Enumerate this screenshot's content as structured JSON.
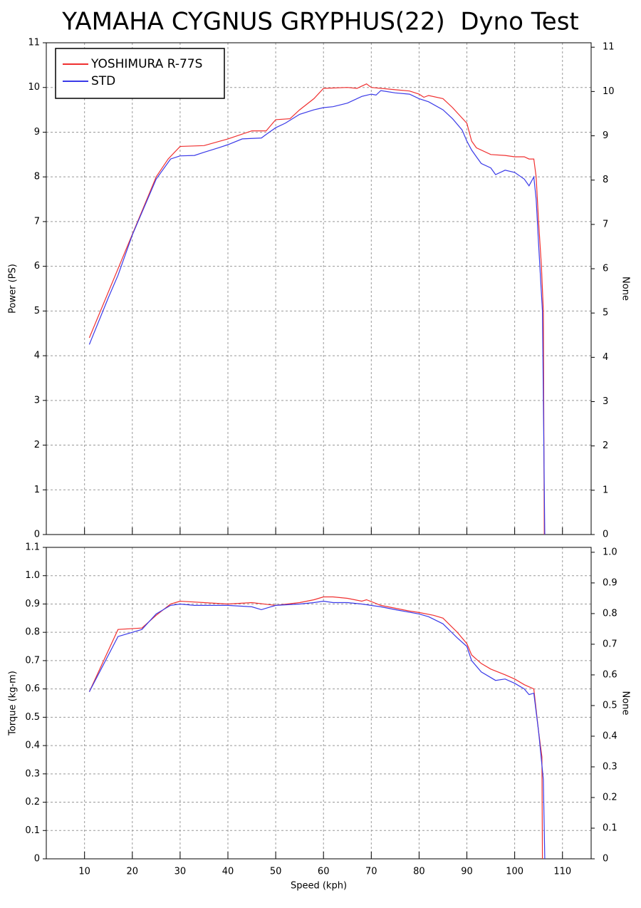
{
  "chart_data": [
    {
      "type": "line",
      "title": "YAMAHA CYGNUS GRYPHUS(22)  Dyno Test",
      "ylabel": "Power (PS)",
      "y2label": "None",
      "xlim": [
        2,
        116
      ],
      "xticks": [
        10,
        20,
        30,
        40,
        50,
        60,
        70,
        80,
        90,
        100,
        110
      ],
      "ylim": [
        0,
        11
      ],
      "yticks": [
        0,
        1,
        2,
        3,
        4,
        5,
        6,
        7,
        8,
        9,
        10,
        11
      ],
      "y2lim": [
        0,
        11.1
      ],
      "y2ticks": [
        0,
        1,
        2,
        3,
        4,
        5,
        6,
        7,
        8,
        9,
        10,
        11
      ],
      "grid": true,
      "legend": "upper left",
      "series": [
        {
          "name": "YOSHIMURA R-77S",
          "color": "#f03030",
          "x": [
            11,
            25,
            27.5,
            30,
            35,
            40,
            45,
            48,
            50,
            53,
            55,
            58,
            60,
            65,
            67,
            69,
            70,
            75,
            78,
            80,
            81,
            82,
            85,
            87,
            90,
            91,
            92,
            95,
            98,
            100,
            102,
            103,
            104,
            104.5,
            105,
            105.6,
            106,
            106.2
          ],
          "values": [
            4.4,
            8.0,
            8.4,
            8.68,
            8.7,
            8.85,
            9.03,
            9.03,
            9.28,
            9.3,
            9.5,
            9.75,
            9.98,
            10.0,
            9.98,
            10.08,
            10.0,
            9.95,
            9.92,
            9.85,
            9.78,
            9.82,
            9.75,
            9.55,
            9.2,
            8.8,
            8.65,
            8.5,
            8.48,
            8.45,
            8.45,
            8.4,
            8.4,
            8.0,
            7.0,
            6.0,
            5.0,
            0
          ]
        },
        {
          "name": "STD",
          "color": "#3a3ae8",
          "x": [
            11,
            15,
            17,
            20,
            25,
            28,
            30,
            33,
            35,
            38,
            40,
            43,
            47,
            48,
            50,
            52,
            55,
            58,
            60,
            62,
            65,
            68,
            70,
            71,
            72,
            75,
            78,
            80,
            82,
            85,
            87,
            89,
            90,
            91,
            92,
            93,
            95,
            96,
            98,
            100,
            102,
            103,
            104,
            104.5,
            105,
            105.8,
            106.3
          ],
          "values": [
            4.25,
            5.3,
            5.8,
            6.7,
            7.95,
            8.4,
            8.47,
            8.48,
            8.55,
            8.65,
            8.72,
            8.85,
            8.87,
            8.95,
            9.1,
            9.2,
            9.4,
            9.5,
            9.55,
            9.57,
            9.65,
            9.8,
            9.85,
            9.83,
            9.93,
            9.88,
            9.85,
            9.75,
            9.68,
            9.5,
            9.3,
            9.05,
            8.8,
            8.6,
            8.45,
            8.3,
            8.2,
            8.05,
            8.15,
            8.1,
            7.95,
            7.8,
            8.0,
            7.5,
            6.5,
            5.0,
            0
          ]
        }
      ]
    },
    {
      "type": "line",
      "ylabel": "Torque (kg-m)",
      "y2label": "None",
      "xlabel": "Speed (kph)",
      "xlim": [
        2,
        116
      ],
      "xticks": [
        10,
        20,
        30,
        40,
        50,
        60,
        70,
        80,
        90,
        100,
        110
      ],
      "ylim": [
        0,
        1.1
      ],
      "yticks": [
        0,
        0.1,
        0.2,
        0.3,
        0.4,
        0.5,
        0.6,
        0.7,
        0.8,
        0.9,
        {
          "value": 1,
          "label": "1.0"
        },
        1.1
      ],
      "y2lim": [
        0,
        1.016
      ],
      "y2ticks": [
        0,
        0.1,
        0.2,
        0.3,
        0.4,
        0.5,
        0.6,
        0.7,
        0.8,
        0.9,
        {
          "value": 1,
          "label": "1.0"
        }
      ],
      "grid": true,
      "series": [
        {
          "name": "YOSHIMURA R-77S",
          "color": "#f03030",
          "x": [
            11,
            17,
            22,
            25,
            28,
            30,
            35,
            40,
            45,
            50,
            55,
            58,
            60,
            62,
            65,
            68,
            69,
            72,
            75,
            78,
            80,
            83,
            85,
            88,
            90,
            91,
            93,
            95,
            98,
            100,
            102,
            104,
            105,
            105.7,
            105.8
          ],
          "values": [
            0.59,
            0.81,
            0.815,
            0.86,
            0.9,
            0.91,
            0.905,
            0.9,
            0.905,
            0.895,
            0.905,
            0.915,
            0.925,
            0.925,
            0.92,
            0.91,
            0.915,
            0.895,
            0.885,
            0.875,
            0.87,
            0.86,
            0.85,
            0.8,
            0.76,
            0.72,
            0.69,
            0.67,
            0.65,
            0.635,
            0.615,
            0.6,
            0.45,
            0.36,
            0
          ]
        },
        {
          "name": "STD",
          "color": "#3a3ae8",
          "x": [
            11,
            17,
            20,
            22,
            25,
            28,
            30,
            33,
            40,
            45,
            47,
            50,
            55,
            58,
            60,
            62,
            65,
            68,
            72,
            75,
            80,
            82,
            85,
            88,
            90,
            91,
            93,
            95,
            96,
            98,
            100,
            102,
            103,
            104,
            105,
            106,
            106.3
          ],
          "values": [
            0.59,
            0.785,
            0.8,
            0.81,
            0.865,
            0.895,
            0.9,
            0.895,
            0.895,
            0.89,
            0.88,
            0.895,
            0.9,
            0.905,
            0.91,
            0.905,
            0.905,
            0.9,
            0.89,
            0.88,
            0.865,
            0.855,
            0.83,
            0.78,
            0.75,
            0.7,
            0.66,
            0.64,
            0.63,
            0.635,
            0.62,
            0.6,
            0.58,
            0.585,
            0.45,
            0.28,
            0
          ]
        }
      ]
    }
  ]
}
